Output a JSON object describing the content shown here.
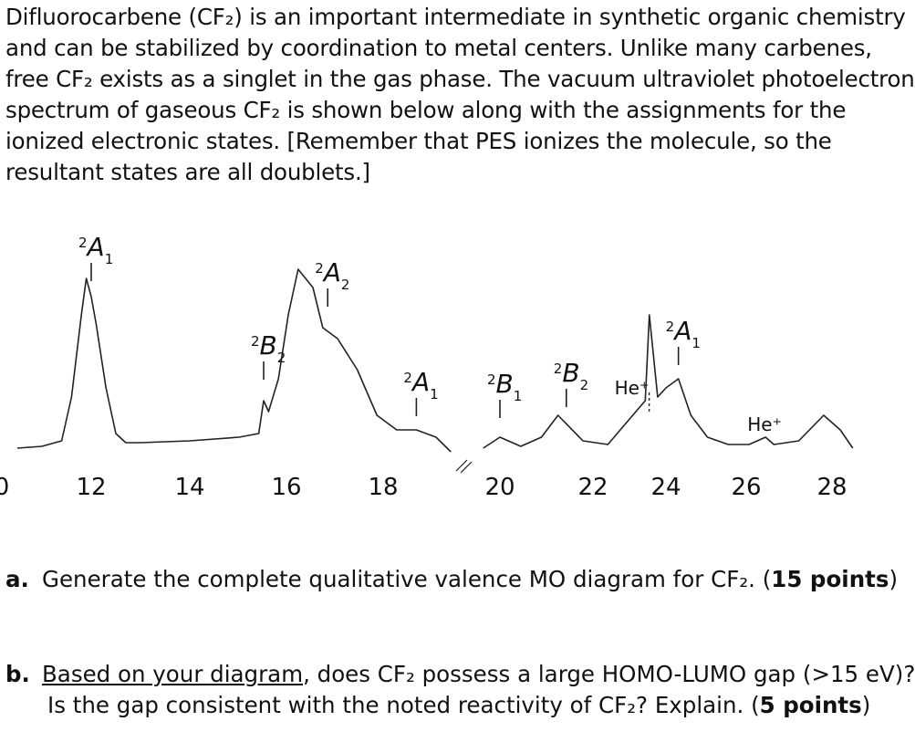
{
  "intro": {
    "lines": [
      "Difluorocarbene (CF₂) is an important intermediate in synthetic organic chemistry",
      "and can be stabilized by coordination to metal centers. Unlike many carbenes,",
      "free CF₂ exists as a singlet in the gas phase. The vacuum ultraviolet photoelectron",
      "spectrum of gaseous CF₂ is shown below along with the assignments for the",
      "ionized electronic states. [Remember that PES ionizes the molecule, so the",
      "resultant states are all doublets.]"
    ]
  },
  "chart_data": {
    "type": "line",
    "xaxis_ticks": [
      "0",
      "12",
      "14",
      "16",
      "18",
      "20",
      "22",
      "24",
      "26",
      "28"
    ],
    "axis_break": "between 18 and 20",
    "series": [
      {
        "x": [
          10.5,
          11.0,
          11.4,
          11.6,
          11.8,
          11.9,
          12.0,
          12.1,
          12.3,
          12.5,
          12.7,
          13.0,
          14.0,
          15.0,
          15.4,
          15.5,
          15.6,
          15.8,
          16.0,
          16.2,
          16.5,
          16.7,
          17.0,
          17.4,
          17.8,
          18.2,
          18.6,
          19.0,
          19.3
        ],
        "y": [
          0.02,
          0.03,
          0.06,
          0.3,
          0.75,
          0.95,
          0.85,
          0.7,
          0.35,
          0.1,
          0.05,
          0.05,
          0.06,
          0.08,
          0.1,
          0.28,
          0.22,
          0.4,
          0.75,
          1.0,
          0.9,
          0.68,
          0.62,
          0.45,
          0.2,
          0.12,
          0.12,
          0.08,
          0.0
        ]
      },
      {
        "x": [
          19.6,
          20.0,
          20.5,
          21.0,
          21.4,
          22.0,
          22.6,
          23.2,
          23.5,
          23.6,
          23.8,
          24.0,
          24.3,
          24.6,
          25.0,
          25.5,
          26.0,
          26.4,
          26.6,
          27.2,
          27.8,
          28.2,
          28.5
        ],
        "y": [
          0.02,
          0.08,
          0.03,
          0.08,
          0.2,
          0.06,
          0.04,
          0.2,
          0.28,
          0.75,
          0.3,
          0.35,
          0.4,
          0.2,
          0.08,
          0.04,
          0.04,
          0.08,
          0.04,
          0.06,
          0.2,
          0.12,
          0.02
        ]
      }
    ],
    "peak_labels": [
      {
        "term": "A",
        "mult": "2",
        "sub": "1",
        "x": 12.0
      },
      {
        "term": "B",
        "mult": "2",
        "sub": "2",
        "x": 15.5
      },
      {
        "term": "A",
        "mult": "2",
        "sub": "2",
        "x": 16.8
      },
      {
        "term": "A",
        "mult": "2",
        "sub": "1",
        "x": 18.6
      },
      {
        "term": "B",
        "mult": "2",
        "sub": "1",
        "x": 20.0
      },
      {
        "term": "B",
        "mult": "2",
        "sub": "2",
        "x": 21.6
      },
      {
        "term": "A",
        "mult": "2",
        "sub": "1",
        "x": 24.3
      }
    ],
    "he_labels": [
      {
        "text": "He⁺",
        "x": 23.2
      },
      {
        "text": "He⁺",
        "x": 26.4
      }
    ]
  },
  "questions": {
    "a": {
      "letter": "a.",
      "text": "Generate the complete qualitative valence MO diagram for CF₂. (",
      "points": "15 points",
      "close": ")"
    },
    "b": {
      "letter": "b.",
      "underlined": "Based on your diagram",
      "text1": ", does CF₂ possess a large HOMO-LUMO gap (>15 eV)?",
      "text2": "Is the gap consistent with the noted reactivity of CF₂? Explain. (",
      "points": "5 points",
      "close": ")"
    }
  }
}
